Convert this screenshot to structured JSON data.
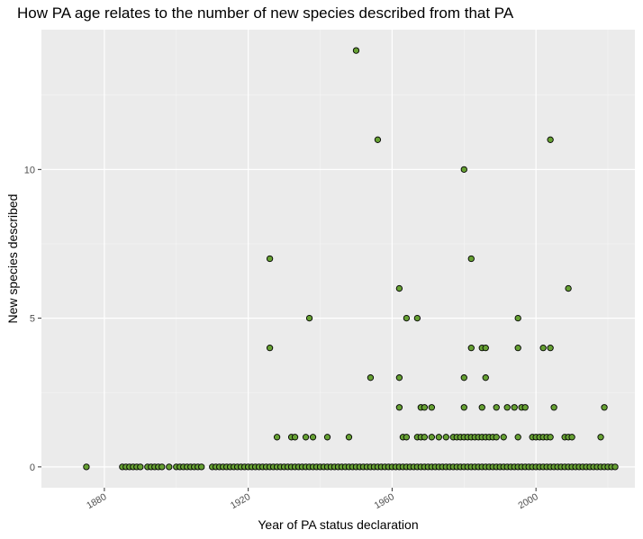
{
  "chart_data": {
    "type": "scatter",
    "title": "How PA age relates to the number of new species described from that PA",
    "xlabel": "Year of PA status declaration",
    "ylabel": "New species described",
    "xlim": [
      1862.5,
      2027.5
    ],
    "ylim": [
      -0.7,
      14.7
    ],
    "xticks": [
      1880,
      1920,
      1960,
      2000
    ],
    "yticks": [
      0,
      5,
      10
    ],
    "grid": true,
    "legend": "none",
    "colors": {
      "panel_background": "#EBEBEB",
      "grid_major": "#FFFFFF",
      "grid_minor": "#F5F5F5",
      "point_fill": "#66A033",
      "point_stroke": "#000000",
      "axis_text": "#4D4D4D"
    },
    "series": [
      {
        "points": [
          [
            1875,
            0
          ],
          [
            1885,
            0
          ],
          [
            1886,
            0
          ],
          [
            1887,
            0
          ],
          [
            1888,
            0
          ],
          [
            1889,
            0
          ],
          [
            1890,
            0
          ],
          [
            1892,
            0
          ],
          [
            1893,
            0
          ],
          [
            1894,
            0
          ],
          [
            1895,
            0
          ],
          [
            1896,
            0
          ],
          [
            1898,
            0
          ],
          [
            1900,
            0
          ],
          [
            1901,
            0
          ],
          [
            1902,
            0
          ],
          [
            1903,
            0
          ],
          [
            1904,
            0
          ],
          [
            1905,
            0
          ],
          [
            1906,
            0
          ],
          [
            1907,
            0
          ],
          [
            1910,
            0
          ],
          [
            1911,
            0
          ],
          [
            1912,
            0
          ],
          [
            1913,
            0
          ],
          [
            1914,
            0
          ],
          [
            1915,
            0
          ],
          [
            1916,
            0
          ],
          [
            1917,
            0
          ],
          [
            1918,
            0
          ],
          [
            1919,
            0
          ],
          [
            1920,
            0
          ],
          [
            1921,
            0
          ],
          [
            1922,
            0
          ],
          [
            1923,
            0
          ],
          [
            1924,
            0
          ],
          [
            1925,
            0
          ],
          [
            1926,
            0
          ],
          [
            1927,
            0
          ],
          [
            1928,
            0
          ],
          [
            1929,
            0
          ],
          [
            1930,
            0
          ],
          [
            1931,
            0
          ],
          [
            1932,
            0
          ],
          [
            1933,
            0
          ],
          [
            1934,
            0
          ],
          [
            1935,
            0
          ],
          [
            1936,
            0
          ],
          [
            1937,
            0
          ],
          [
            1938,
            0
          ],
          [
            1939,
            0
          ],
          [
            1940,
            0
          ],
          [
            1941,
            0
          ],
          [
            1942,
            0
          ],
          [
            1943,
            0
          ],
          [
            1944,
            0
          ],
          [
            1945,
            0
          ],
          [
            1946,
            0
          ],
          [
            1947,
            0
          ],
          [
            1948,
            0
          ],
          [
            1949,
            0
          ],
          [
            1950,
            0
          ],
          [
            1951,
            0
          ],
          [
            1952,
            0
          ],
          [
            1953,
            0
          ],
          [
            1954,
            0
          ],
          [
            1955,
            0
          ],
          [
            1956,
            0
          ],
          [
            1957,
            0
          ],
          [
            1958,
            0
          ],
          [
            1959,
            0
          ],
          [
            1960,
            0
          ],
          [
            1961,
            0
          ],
          [
            1962,
            0
          ],
          [
            1963,
            0
          ],
          [
            1964,
            0
          ],
          [
            1965,
            0
          ],
          [
            1966,
            0
          ],
          [
            1967,
            0
          ],
          [
            1968,
            0
          ],
          [
            1969,
            0
          ],
          [
            1970,
            0
          ],
          [
            1971,
            0
          ],
          [
            1972,
            0
          ],
          [
            1973,
            0
          ],
          [
            1974,
            0
          ],
          [
            1975,
            0
          ],
          [
            1976,
            0
          ],
          [
            1977,
            0
          ],
          [
            1978,
            0
          ],
          [
            1979,
            0
          ],
          [
            1980,
            0
          ],
          [
            1981,
            0
          ],
          [
            1982,
            0
          ],
          [
            1983,
            0
          ],
          [
            1984,
            0
          ],
          [
            1985,
            0
          ],
          [
            1986,
            0
          ],
          [
            1987,
            0
          ],
          [
            1988,
            0
          ],
          [
            1989,
            0
          ],
          [
            1990,
            0
          ],
          [
            1991,
            0
          ],
          [
            1992,
            0
          ],
          [
            1993,
            0
          ],
          [
            1994,
            0
          ],
          [
            1995,
            0
          ],
          [
            1996,
            0
          ],
          [
            1997,
            0
          ],
          [
            1998,
            0
          ],
          [
            1999,
            0
          ],
          [
            2000,
            0
          ],
          [
            2001,
            0
          ],
          [
            2002,
            0
          ],
          [
            2003,
            0
          ],
          [
            2004,
            0
          ],
          [
            2005,
            0
          ],
          [
            2006,
            0
          ],
          [
            2007,
            0
          ],
          [
            2008,
            0
          ],
          [
            2009,
            0
          ],
          [
            2010,
            0
          ],
          [
            2011,
            0
          ],
          [
            2012,
            0
          ],
          [
            2013,
            0
          ],
          [
            2014,
            0
          ],
          [
            2015,
            0
          ],
          [
            2016,
            0
          ],
          [
            2017,
            0
          ],
          [
            2018,
            0
          ],
          [
            2019,
            0
          ],
          [
            2020,
            0
          ],
          [
            2021,
            0
          ],
          [
            2022,
            0
          ],
          [
            1926,
            7
          ],
          [
            1926,
            4
          ],
          [
            1928,
            1
          ],
          [
            1932,
            1
          ],
          [
            1933,
            1
          ],
          [
            1936,
            1
          ],
          [
            1937,
            5
          ],
          [
            1938,
            1
          ],
          [
            1942,
            1
          ],
          [
            1948,
            1
          ],
          [
            1950,
            14
          ],
          [
            1954,
            3
          ],
          [
            1956,
            11
          ],
          [
            1962,
            6
          ],
          [
            1962,
            3
          ],
          [
            1962,
            2
          ],
          [
            1963,
            1
          ],
          [
            1964,
            1
          ],
          [
            1964,
            5
          ],
          [
            1967,
            1
          ],
          [
            1967,
            5
          ],
          [
            1968,
            1
          ],
          [
            1968,
            2
          ],
          [
            1969,
            1
          ],
          [
            1969,
            2
          ],
          [
            1971,
            1
          ],
          [
            1971,
            2
          ],
          [
            1973,
            1
          ],
          [
            1975,
            1
          ],
          [
            1977,
            1
          ],
          [
            1978,
            1
          ],
          [
            1979,
            1
          ],
          [
            1980,
            1
          ],
          [
            1980,
            3
          ],
          [
            1980,
            2
          ],
          [
            1980,
            10
          ],
          [
            1981,
            1
          ],
          [
            1982,
            1
          ],
          [
            1982,
            4
          ],
          [
            1982,
            7
          ],
          [
            1983,
            1
          ],
          [
            1984,
            1
          ],
          [
            1985,
            1
          ],
          [
            1985,
            2
          ],
          [
            1985,
            4
          ],
          [
            1986,
            1
          ],
          [
            1986,
            3
          ],
          [
            1986,
            4
          ],
          [
            1987,
            1
          ],
          [
            1988,
            1
          ],
          [
            1989,
            1
          ],
          [
            1989,
            2
          ],
          [
            1991,
            1
          ],
          [
            1992,
            2
          ],
          [
            1994,
            2
          ],
          [
            1995,
            1
          ],
          [
            1995,
            4
          ],
          [
            1995,
            5
          ],
          [
            1996,
            2
          ],
          [
            1997,
            2
          ],
          [
            1999,
            1
          ],
          [
            2000,
            1
          ],
          [
            2001,
            1
          ],
          [
            2002,
            1
          ],
          [
            2002,
            4
          ],
          [
            2003,
            1
          ],
          [
            2004,
            1
          ],
          [
            2004,
            4
          ],
          [
            2004,
            11
          ],
          [
            2005,
            2
          ],
          [
            2008,
            1
          ],
          [
            2009,
            1
          ],
          [
            2009,
            6
          ],
          [
            2010,
            1
          ],
          [
            2018,
            1
          ],
          [
            2019,
            2
          ]
        ]
      }
    ]
  }
}
